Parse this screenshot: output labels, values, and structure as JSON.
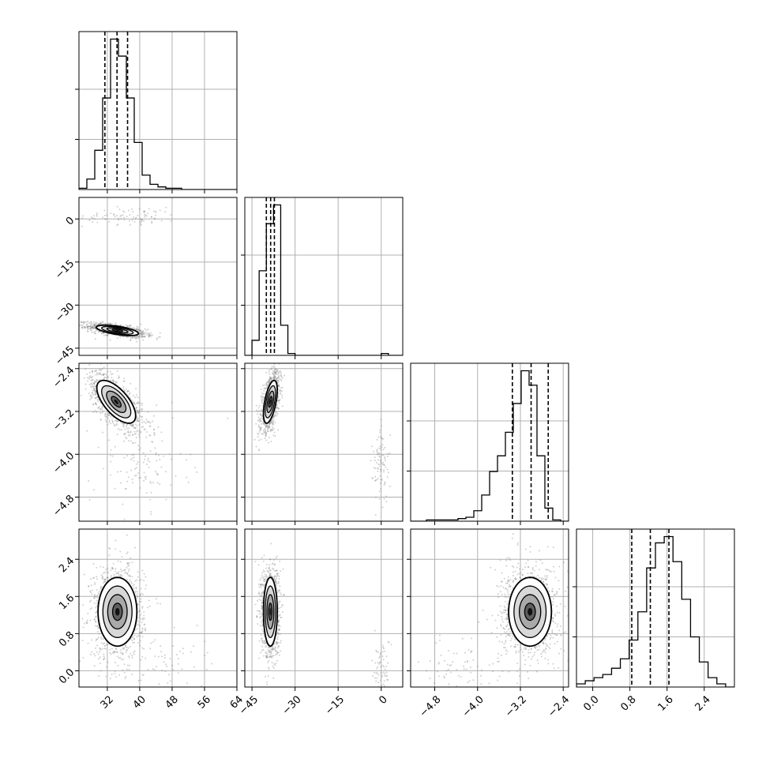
{
  "chart_data": {
    "type": "corner",
    "grid": true,
    "parameters": [
      {
        "range": [
          25,
          64
        ],
        "ticks": [
          32,
          40,
          48,
          56,
          64
        ],
        "tick_labels": [
          "32",
          "40",
          "48",
          "56",
          "64"
        ],
        "quantiles": [
          31.4,
          34.4,
          37.0
        ],
        "mean": 34.4,
        "sd": 2.4,
        "hist_counts": [
          1,
          8,
          30,
          70,
          115,
          102,
          70,
          36,
          11,
          4,
          2,
          1,
          1,
          0,
          0,
          0,
          0,
          0,
          0,
          0
        ]
      },
      {
        "range": [
          -47.5,
          7.5
        ],
        "ticks": [
          -45,
          -30,
          -15,
          0
        ],
        "tick_labels": [
          "−45",
          "−30",
          "−15",
          "0"
        ],
        "quantiles": [
          -40.0,
          -38.5,
          -37.2
        ],
        "mean": -38.6,
        "sd": 1.2,
        "hist_counts": [
          0,
          8,
          45,
          70,
          80,
          16,
          1,
          0,
          0,
          0,
          0,
          0,
          0,
          0,
          0,
          0,
          0,
          0,
          0,
          1,
          0,
          0
        ]
      },
      {
        "range": [
          -5.25,
          -2.3
        ],
        "ticks": [
          -4.8,
          -4.0,
          -3.2,
          -2.4
        ],
        "tick_labels": [
          "−4.8",
          "−4.0",
          "−3.2",
          "−2.4"
        ],
        "quantiles": [
          -3.35,
          -3.0,
          -2.68
        ],
        "mean": -3.02,
        "sd": 0.2,
        "hist_counts": [
          0,
          0,
          1,
          1,
          1,
          1,
          2,
          3,
          8,
          20,
          38,
          50,
          68,
          90,
          115,
          104,
          50,
          10,
          1,
          0
        ]
      },
      {
        "range": [
          -0.35,
          3.05
        ],
        "ticks": [
          0.0,
          0.8,
          1.6,
          2.4
        ],
        "tick_labels": [
          "0.0",
          "0.8",
          "1.6",
          "2.4"
        ],
        "quantiles": [
          0.84,
          1.24,
          1.64
        ],
        "mean": 1.25,
        "sd": 0.37,
        "hist_counts": [
          1,
          2,
          3,
          4,
          6,
          9,
          15,
          24,
          38,
          46,
          48,
          40,
          28,
          16,
          8,
          3,
          1,
          0
        ]
      }
    ],
    "pairs": [
      {
        "row": 1,
        "col": 0,
        "center": [
          34.5,
          -38.8
        ],
        "sx": 2.6,
        "sy": 0.9,
        "rho": -0.6,
        "outliers": {
          "center": [
            38,
            1
          ],
          "sx": 6,
          "sy": 1.5,
          "n": 90
        }
      },
      {
        "row": 2,
        "col": 0,
        "center": [
          34.2,
          -3.02
        ],
        "sx": 2.4,
        "sy": 0.2,
        "rho": -0.65,
        "outliers": {
          "center": [
            40,
            -4.2
          ],
          "sx": 6,
          "sy": 0.4,
          "n": 120
        }
      },
      {
        "row": 2,
        "col": 1,
        "center": [
          -38.6,
          -3.02
        ],
        "sx": 1.2,
        "sy": 0.2,
        "rho": 0.55,
        "outliers": {
          "center": [
            0,
            -4.2
          ],
          "sx": 1.5,
          "sy": 0.35,
          "n": 90
        }
      },
      {
        "row": 3,
        "col": 0,
        "center": [
          34.5,
          1.27
        ],
        "sx": 2.4,
        "sy": 0.37,
        "rho": 0.0,
        "outliers": {
          "center": [
            44,
            0.2
          ],
          "sx": 6,
          "sy": 0.3,
          "n": 60
        }
      },
      {
        "row": 3,
        "col": 1,
        "center": [
          -38.6,
          1.27
        ],
        "sx": 1.2,
        "sy": 0.37,
        "rho": 0.0,
        "outliers": {
          "center": [
            0,
            0.1
          ],
          "sx": 1.5,
          "sy": 0.3,
          "n": 60
        }
      },
      {
        "row": 3,
        "col": 2,
        "center": [
          -3.02,
          1.27
        ],
        "sx": 0.2,
        "sy": 0.37,
        "rho": 0.0,
        "outliers": {
          "center": [
            -4.3,
            0.1
          ],
          "sx": 0.35,
          "sy": 0.3,
          "n": 70
        }
      }
    ]
  }
}
